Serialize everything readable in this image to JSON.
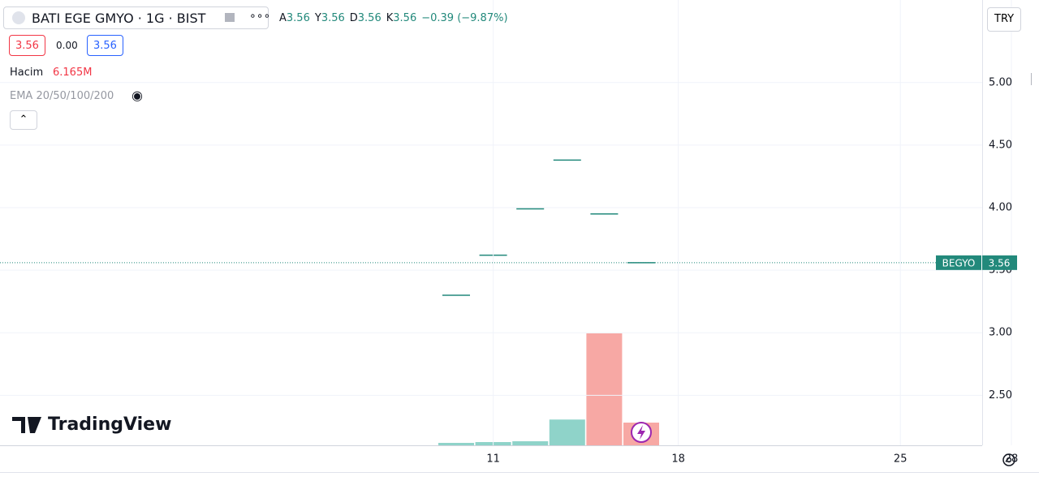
{
  "header": {
    "symbol": "BATI EGE GMYO · 1G · BIST",
    "ohlc": [
      {
        "label": "A",
        "value": "3.56"
      },
      {
        "label": "Y",
        "value": "3.56"
      },
      {
        "label": "D",
        "value": "3.56"
      },
      {
        "label": "K",
        "value": "3.56"
      }
    ],
    "change": "−0.39 (−9.87%)",
    "sell": "3.56",
    "spread": "0.00",
    "buy": "3.56",
    "volume_label": "Hacim",
    "volume_value": "6.165M",
    "indicator": "EMA 20/50/100/200",
    "currency": "TRY",
    "logo": "TradingView"
  },
  "chart_data": {
    "type": "ohlc",
    "categories": [
      null,
      "11",
      null,
      null,
      null,
      null,
      "18",
      null,
      null,
      null,
      null,
      null,
      "25",
      null,
      null,
      "28"
    ],
    "series": [
      {
        "color": "#22897b",
        "values": [
          3.3,
          3.62,
          3.99,
          4.38,
          3.95,
          3.56,
          null,
          null,
          null,
          null,
          null,
          null,
          null,
          null,
          null,
          null
        ]
      }
    ],
    "volume": {
      "values": [
        0.66,
        0.88,
        1.1,
        7.0,
        30.4,
        6.165,
        null,
        null,
        null,
        null,
        null,
        null,
        null,
        null,
        null,
        null
      ],
      "colors": [
        "#8fd3c9",
        "#8fd3c9",
        "#8fd3c9",
        "#8fd3c9",
        "#f7a8a4",
        "#f7a8a4",
        null,
        null,
        null,
        null,
        null,
        null,
        null,
        null,
        null,
        null
      ]
    },
    "ylim": [
      2.1,
      5.66
    ],
    "yticks": [
      {
        "value": 2.5,
        "label": "2.50"
      },
      {
        "value": 3,
        "label": "3.00"
      },
      {
        "value": 3.5,
        "label": "3.50"
      },
      {
        "value": 4,
        "label": "4.00"
      },
      {
        "value": 4.5,
        "label": "4.50"
      },
      {
        "value": 5,
        "label": "5.00"
      }
    ],
    "grid": true,
    "last_price": {
      "symbol": "BEGYO",
      "value": 3.56,
      "color": "#22897b"
    }
  }
}
